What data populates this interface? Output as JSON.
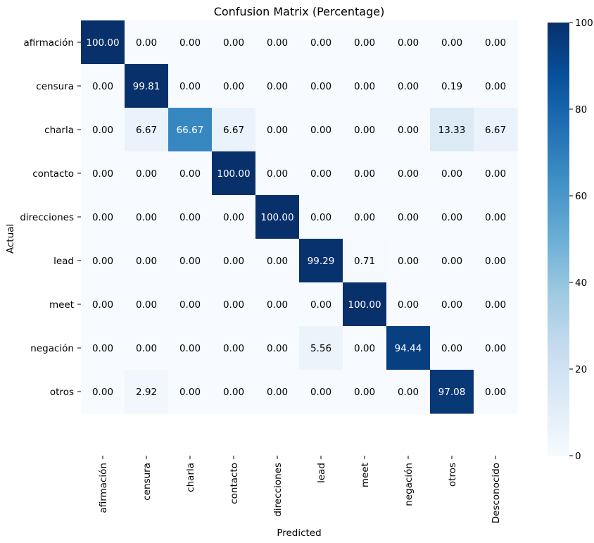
{
  "chart_data": {
    "type": "heatmap",
    "title": "Confusion Matrix (Percentage)",
    "xlabel": "Predicted",
    "ylabel": "Actual",
    "row_labels": [
      "afirmación",
      "censura",
      "charla",
      "contacto",
      "direcciones",
      "lead",
      "meet",
      "negación",
      "otros"
    ],
    "col_labels": [
      "afirmación",
      "censura",
      "charla",
      "contacto",
      "direcciones",
      "lead",
      "meet",
      "negación",
      "otros",
      "Desconocido"
    ],
    "values": [
      [
        100.0,
        0.0,
        0.0,
        0.0,
        0.0,
        0.0,
        0.0,
        0.0,
        0.0,
        0.0
      ],
      [
        0.0,
        99.81,
        0.0,
        0.0,
        0.0,
        0.0,
        0.0,
        0.0,
        0.19,
        0.0
      ],
      [
        0.0,
        6.67,
        66.67,
        6.67,
        0.0,
        0.0,
        0.0,
        0.0,
        13.33,
        6.67
      ],
      [
        0.0,
        0.0,
        0.0,
        100.0,
        0.0,
        0.0,
        0.0,
        0.0,
        0.0,
        0.0
      ],
      [
        0.0,
        0.0,
        0.0,
        0.0,
        100.0,
        0.0,
        0.0,
        0.0,
        0.0,
        0.0
      ],
      [
        0.0,
        0.0,
        0.0,
        0.0,
        0.0,
        99.29,
        0.71,
        0.0,
        0.0,
        0.0
      ],
      [
        0.0,
        0.0,
        0.0,
        0.0,
        0.0,
        0.0,
        100.0,
        0.0,
        0.0,
        0.0
      ],
      [
        0.0,
        0.0,
        0.0,
        0.0,
        0.0,
        5.56,
        0.0,
        94.44,
        0.0,
        0.0
      ],
      [
        0.0,
        2.92,
        0.0,
        0.0,
        0.0,
        0.0,
        0.0,
        0.0,
        97.08,
        0.0
      ]
    ],
    "value_format": "0.00",
    "colormap": "Blues",
    "vmin": 0,
    "vmax": 100,
    "colorbar_ticks": [
      0,
      20,
      40,
      60,
      80,
      100
    ]
  }
}
